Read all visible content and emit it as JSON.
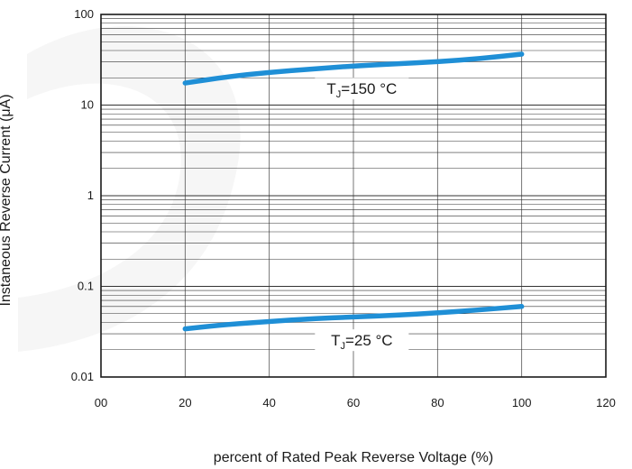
{
  "chart_data": {
    "type": "line",
    "title": "",
    "xlabel": "percent of Rated  Peak Reverse Voltage (%)",
    "ylabel": "Instaneous Reverse  Current  (μA)",
    "xlim": [
      0,
      120
    ],
    "ylim": [
      0.01,
      100
    ],
    "yscale": "log",
    "grid": true,
    "x_ticks": [
      0,
      20,
      40,
      60,
      80,
      100,
      120
    ],
    "x_tick_labels": [
      "00",
      "20",
      "40",
      "60",
      "80",
      "100",
      "120"
    ],
    "y_ticks": [
      0.01,
      0.1,
      1,
      10,
      100
    ],
    "y_tick_labels": [
      "0.01",
      "0.1",
      "1",
      "10",
      "100"
    ],
    "line_color": "#1f8fd6",
    "series": [
      {
        "label_main": "T",
        "label_sub": "J",
        "label_rest": "=150 °C",
        "x": [
          20,
          30,
          40,
          50,
          60,
          70,
          80,
          90,
          100
        ],
        "y": [
          17.5,
          20.5,
          23,
          25,
          27,
          28.5,
          30,
          32.5,
          36.5
        ]
      },
      {
        "label_main": "T",
        "label_sub": "J",
        "label_rest": "=25 °C",
        "x": [
          20,
          30,
          40,
          50,
          60,
          70,
          80,
          90,
          100
        ],
        "y": [
          0.034,
          0.038,
          0.041,
          0.044,
          0.046,
          0.048,
          0.051,
          0.055,
          0.06
        ]
      }
    ]
  }
}
